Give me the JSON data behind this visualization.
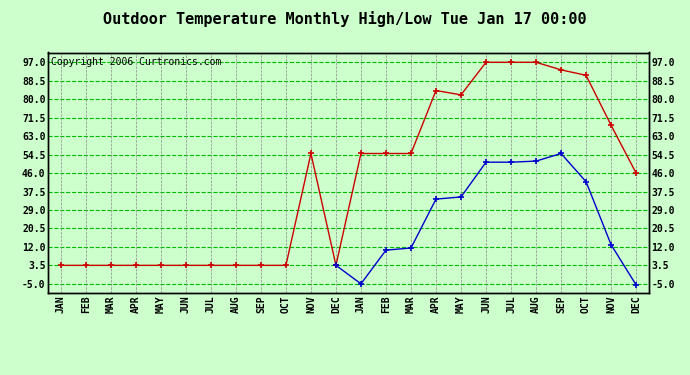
{
  "title": "Outdoor Temperature Monthly High/Low Tue Jan 17 00:00",
  "copyright": "Copyright 2006 Curtronics.com",
  "x_labels": [
    "JAN",
    "FEB",
    "MAR",
    "APR",
    "MAY",
    "JUN",
    "JUL",
    "AUG",
    "SEP",
    "OCT",
    "NOV",
    "DEC",
    "JAN",
    "FEB",
    "MAR",
    "APR",
    "MAY",
    "JUN",
    "JUL",
    "AUG",
    "SEP",
    "OCT",
    "NOV",
    "DEC"
  ],
  "high_values": [
    3.5,
    3.5,
    3.5,
    3.5,
    3.5,
    3.5,
    3.5,
    3.5,
    3.5,
    3.5,
    55.0,
    3.5,
    55.0,
    55.0,
    55.0,
    84.0,
    82.0,
    97.0,
    97.0,
    97.0,
    93.5,
    91.0,
    68.0,
    46.0
  ],
  "low_values": [
    null,
    null,
    null,
    null,
    null,
    null,
    null,
    null,
    null,
    null,
    null,
    3.5,
    -5.0,
    10.5,
    11.5,
    34.0,
    35.0,
    51.0,
    51.0,
    51.5,
    55.0,
    42.0,
    13.0,
    -5.5
  ],
  "y_ticks": [
    -5.0,
    3.5,
    12.0,
    20.5,
    29.0,
    37.5,
    46.0,
    54.5,
    63.0,
    71.5,
    80.0,
    88.5,
    97.0
  ],
  "ylim": [
    -9.0,
    101.5
  ],
  "bg_color": "#ccffcc",
  "grid_color": "#00bb00",
  "high_color": "#cc0000",
  "low_color": "#0000cc",
  "title_fontsize": 11,
  "copyright_fontsize": 7,
  "tick_fontsize": 7
}
